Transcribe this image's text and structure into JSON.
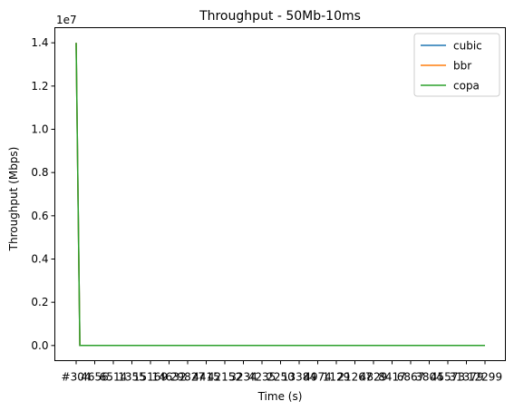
{
  "chart_data": {
    "type": "line",
    "title": "Throughput - 50Mb-10ms",
    "xlabel": "Time (s)",
    "ylabel": "Throughput (Mbps)",
    "y_offset_label": "1e7",
    "ylim": [
      -700000,
      14700000
    ],
    "yticks": [
      0,
      2000000,
      4000000,
      6000000,
      8000000,
      10000000,
      12000000,
      14000000
    ],
    "ytick_labels": [
      "0.0",
      "0.2",
      "0.4",
      "0.6",
      "0.8",
      "1.0",
      "1.2",
      "1.4"
    ],
    "xtick_labels": [
      "#304",
      "4656",
      "6514",
      "1355",
      "15169",
      "14632",
      "29827",
      "4415",
      "42152",
      "3234",
      "4235",
      "2250",
      "13384",
      "4974",
      "1129",
      "21267",
      "4829",
      "8417",
      "6867",
      "3804",
      "45573",
      "31379",
      "12299"
    ],
    "legend": {
      "placement": "top-right",
      "entries": [
        "cubic",
        "bbr",
        "copa"
      ]
    },
    "grid": false,
    "series": [
      {
        "name": "cubic",
        "color": "#1f77b4",
        "x": [
          0,
          0.2,
          22
        ],
        "values": [
          14000000,
          0,
          0
        ]
      },
      {
        "name": "bbr",
        "color": "#ff7f0e",
        "x": [
          0,
          0.2,
          22
        ],
        "values": [
          14000000,
          0,
          0
        ]
      },
      {
        "name": "copa",
        "color": "#2ca02c",
        "x": [
          0,
          0.2,
          22
        ],
        "values": [
          14000000,
          0,
          0
        ]
      }
    ]
  }
}
